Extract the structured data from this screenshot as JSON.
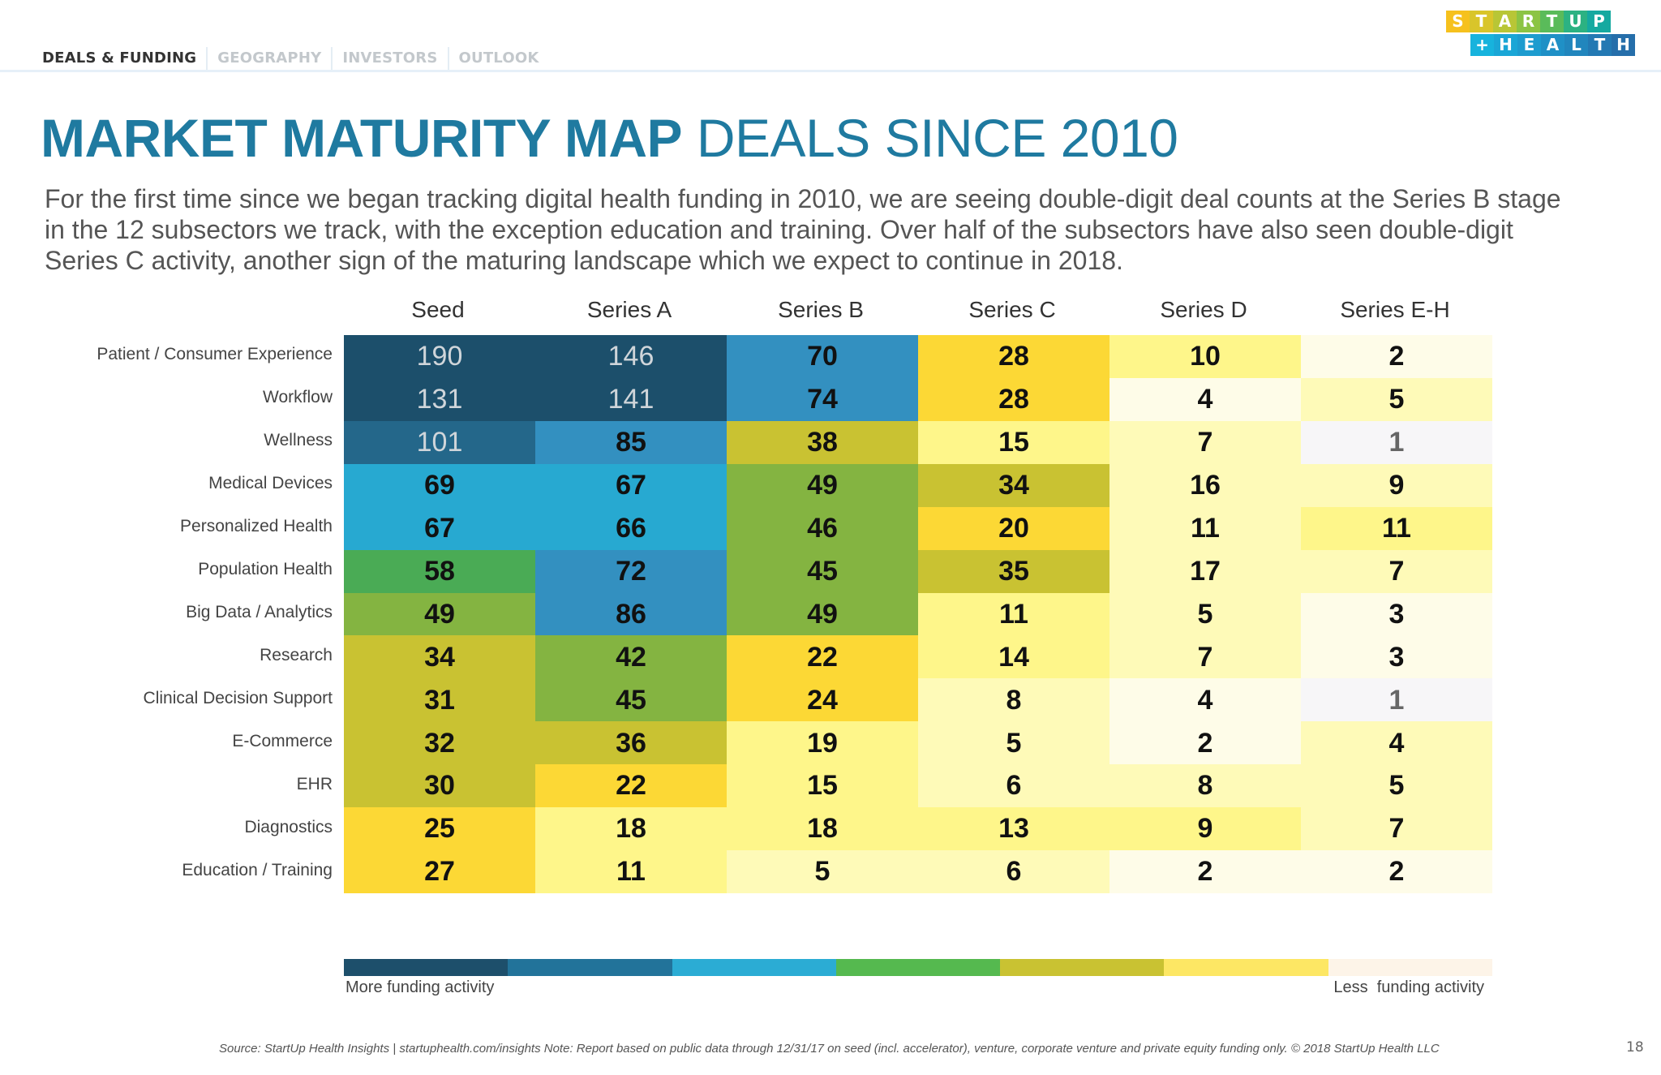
{
  "nav": {
    "tabs": [
      "DEALS & FUNDING",
      "GEOGRAPHY",
      "INVESTORS",
      "OUTLOOK"
    ]
  },
  "logo": {
    "line1": "STARTUP",
    "line2": "+HEALTH"
  },
  "title": {
    "bold": "MARKET MATURITY MAP",
    "light": "DEALS SINCE 2010"
  },
  "paragraph": "For the first time since we began tracking digital health funding in 2010, we are seeing double-digit deal counts at the Series B stage in the 12 subsectors we track, with the exception education and training. Over half of the subsectors have also seen double-digit Series C activity, another sign of the maturing landscape which we expect to continue in 2018.",
  "chart_data": {
    "type": "heatmap",
    "columns": [
      "Seed",
      "Series A",
      "Series B",
      "Series C",
      "Series D",
      "Series E-H"
    ],
    "rows": [
      "Patient / Consumer Experience",
      "Workflow",
      "Wellness",
      "Medical Devices",
      "Personalized Health",
      "Population Health",
      "Big Data / Analytics",
      "Research",
      "Clinical Decision Support",
      "E-Commerce",
      "EHR",
      "Diagnostics",
      "Education / Training"
    ],
    "values": [
      [
        190,
        146,
        70,
        28,
        10,
        2
      ],
      [
        131,
        141,
        74,
        28,
        4,
        5
      ],
      [
        101,
        85,
        38,
        15,
        7,
        1
      ],
      [
        69,
        67,
        49,
        34,
        16,
        9
      ],
      [
        67,
        66,
        46,
        20,
        11,
        11
      ],
      [
        58,
        72,
        45,
        35,
        17,
        7
      ],
      [
        49,
        86,
        49,
        11,
        5,
        3
      ],
      [
        34,
        42,
        22,
        14,
        7,
        3
      ],
      [
        31,
        45,
        24,
        8,
        4,
        1
      ],
      [
        32,
        36,
        19,
        5,
        2,
        4
      ],
      [
        30,
        22,
        15,
        6,
        8,
        5
      ],
      [
        25,
        18,
        18,
        13,
        9,
        7
      ],
      [
        27,
        11,
        5,
        6,
        2,
        2
      ]
    ],
    "color_scale": [
      "#1c4f6b",
      "#24678a",
      "#3390c0",
      "#27a9d1",
      "#4aab55",
      "#84b441",
      "#c9c232",
      "#fcd835",
      "#fef68a",
      "#fefab8",
      "#fefce8",
      "#f7f6f8"
    ],
    "levels": [
      [
        0,
        0,
        2,
        7,
        8,
        10
      ],
      [
        0,
        0,
        2,
        7,
        10,
        9
      ],
      [
        1,
        2,
        6,
        8,
        9,
        11
      ],
      [
        3,
        3,
        5,
        6,
        9,
        9
      ],
      [
        3,
        3,
        5,
        7,
        9,
        8
      ],
      [
        4,
        2,
        5,
        6,
        9,
        9
      ],
      [
        5,
        2,
        5,
        8,
        9,
        10
      ],
      [
        6,
        5,
        7,
        8,
        9,
        10
      ],
      [
        6,
        5,
        7,
        9,
        10,
        11
      ],
      [
        6,
        6,
        8,
        9,
        10,
        9
      ],
      [
        6,
        7,
        8,
        9,
        9,
        9
      ],
      [
        7,
        8,
        8,
        8,
        8,
        9
      ],
      [
        7,
        8,
        9,
        9,
        10,
        10
      ]
    ],
    "legend": {
      "colors": [
        "#1d4f6b",
        "#22739a",
        "#2bacd4",
        "#55b94f",
        "#c9c232",
        "#fde764",
        "#fdf4e8"
      ],
      "left_label": "More funding activity",
      "right_label": "Less  funding activity"
    }
  },
  "footer": {
    "source": "Source: StartUp Health Insights | startuphealth.com/insights Note: Report based on public data through 12/31/17 on seed (incl. accelerator), venture, corporate venture and private equity funding only. © 2018 StartUp Health LLC",
    "page_number": "18"
  }
}
